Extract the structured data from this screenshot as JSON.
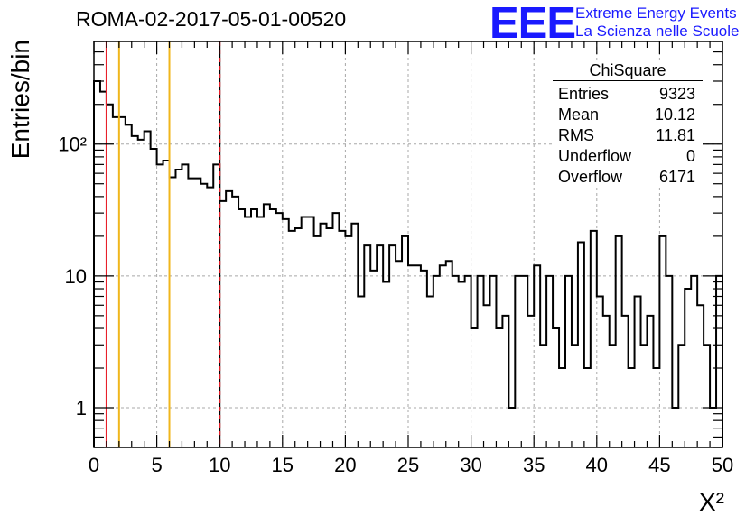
{
  "chart_data": {
    "type": "histogram",
    "title": "ROMA-02-2017-05-01-00520",
    "xlabel": "X²",
    "ylabel": "Entries/bin",
    "xlim": [
      0,
      50
    ],
    "ylim": [
      0.5,
      600
    ],
    "yscale": "log",
    "grid": true,
    "bin_width": 0.5,
    "x_ticks": [
      0,
      5,
      10,
      15,
      20,
      25,
      30,
      35,
      40,
      45,
      50
    ],
    "y_ticks": [
      {
        "value": 1,
        "label": "1"
      },
      {
        "value": 10,
        "label": "10"
      },
      {
        "value": 100,
        "label": "10²"
      }
    ],
    "values": [
      300,
      250,
      200,
      160,
      160,
      140,
      115,
      108,
      125,
      92,
      70,
      75,
      56,
      64,
      70,
      55,
      55,
      50,
      47,
      70,
      37,
      44,
      40,
      32,
      28,
      32,
      28,
      35,
      32,
      30,
      27,
      22,
      23,
      28,
      28,
      20,
      25,
      23,
      30,
      22,
      20,
      25,
      7,
      17,
      11,
      17,
      9,
      17,
      13,
      20,
      12,
      12,
      11,
      7,
      10,
      12,
      13,
      10,
      9,
      10,
      4,
      10,
      6,
      10,
      4,
      5,
      1,
      10,
      10,
      5,
      12,
      3,
      10,
      4,
      2,
      10,
      3,
      18,
      2,
      22,
      7,
      5,
      3,
      20,
      5,
      2,
      7,
      3,
      5,
      2,
      20,
      10,
      1,
      3,
      8,
      10,
      6,
      3,
      1,
      10
    ],
    "vertical_lines": [
      {
        "x": 1,
        "color": "#e8202a",
        "style": "solid"
      },
      {
        "x": 2,
        "color": "#f0b61c",
        "style": "solid"
      },
      {
        "x": 6,
        "color": "#f0b61c",
        "style": "solid"
      },
      {
        "x": 10,
        "color": "#e8202a",
        "style": "dashed"
      }
    ],
    "stats": {
      "title": "ChiSquare",
      "rows": [
        {
          "label": "Entries",
          "value": "9323"
        },
        {
          "label": "Mean",
          "value": "10.12"
        },
        {
          "label": "RMS",
          "value": "11.81"
        },
        {
          "label": "Underflow",
          "value": "0"
        },
        {
          "label": "Overflow",
          "value": "6171"
        }
      ]
    }
  },
  "logo": {
    "mark": "EEE",
    "line1": "Extreme Energy Events",
    "line2": "La Scienza nelle Scuole",
    "color": "#1a1aff"
  }
}
